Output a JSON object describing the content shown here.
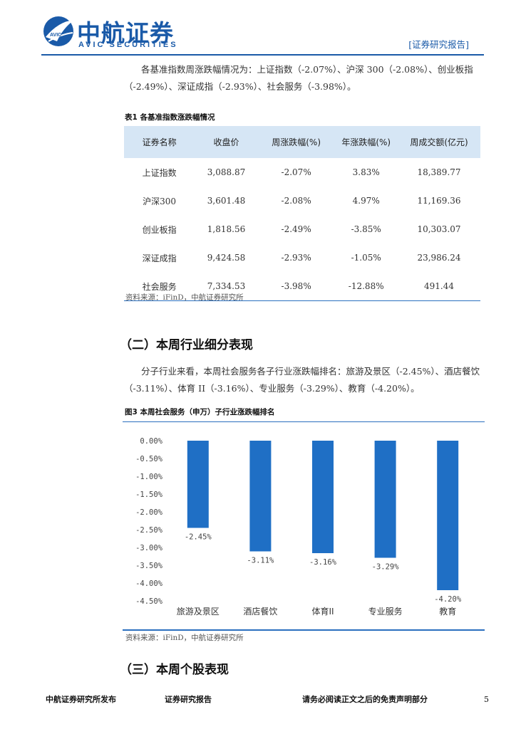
{
  "header": {
    "brand_cn": "中航证券",
    "brand_en": "AVIC SECURITIES",
    "logo_text": "AVIC",
    "report_tag": "[证券研究报告]",
    "brand_color": "#1a5aa8"
  },
  "paragraph_1": "各基准指数周涨跌幅情况为：上证指数（-2.07%）、沪深 300（-2.08%）、创业板指（-2.49%）、深证成指（-2.93%）、社会服务（-3.98%）。",
  "table_1": {
    "caption": "表1  各基准指数涨跌幅情况",
    "headers": [
      "证券名称",
      "收盘价",
      "周涨跌幅(%)",
      "年涨跌幅(%)",
      "周成交额(亿元)"
    ],
    "rows": [
      [
        "上证指数",
        "3,088.87",
        "-2.07%",
        "3.83%",
        "18,389.77"
      ],
      [
        "沪深300",
        "3,601.48",
        "-2.08%",
        "4.97%",
        "11,169.36"
      ],
      [
        "创业板指",
        "1,818.56",
        "-2.49%",
        "-3.85%",
        "10,303.07"
      ],
      [
        "深证成指",
        "9,424.58",
        "-2.93%",
        "-1.05%",
        "23,986.24"
      ],
      [
        "社会服务",
        "7,334.53",
        "-3.98%",
        "-12.88%",
        "491.44"
      ]
    ],
    "source": "资料来源：iFinD，中航证券研究所",
    "header_bg": "#d6e6f5"
  },
  "section_2": "（二）本周行业细分表现",
  "paragraph_2": "分子行业来看，本周社会服务各子行业涨跌幅排名：旅游及景区（-2.45%）、酒店餐饮（-3.11%）、体育 II（-3.16%）、专业服务（-3.29%）、教育（-4.20%）。",
  "figure_3": {
    "caption": "图3  本周社会服务（申万）子行业涨跌幅排名",
    "source": "资料来源：iFinD，中航证券研究所"
  },
  "chart_data": {
    "type": "bar",
    "categories": [
      "旅游及景区",
      "酒店餐饮",
      "体育II",
      "专业服务",
      "教育"
    ],
    "values": [
      -2.45,
      -3.11,
      -3.16,
      -3.29,
      -4.2
    ],
    "data_labels": [
      "-2.45%",
      "-3.11%",
      "-3.16%",
      "-3.29%",
      "-4.20%"
    ],
    "y_ticks": [
      "0.00%",
      "-0.50%",
      "-1.00%",
      "-1.50%",
      "-2.00%",
      "-2.50%",
      "-3.00%",
      "-3.50%",
      "-4.00%",
      "-4.50%"
    ],
    "ylim": [
      -4.5,
      0
    ],
    "grid": false,
    "legend": "none",
    "bar_color": "#1f6fc5"
  },
  "section_3": "（三）本周个股表现",
  "footer": {
    "left": "中航证券研究所发布",
    "middle": "证券研究报告",
    "right": "请务必阅读正文之后的免责声明部分",
    "page": "5"
  }
}
